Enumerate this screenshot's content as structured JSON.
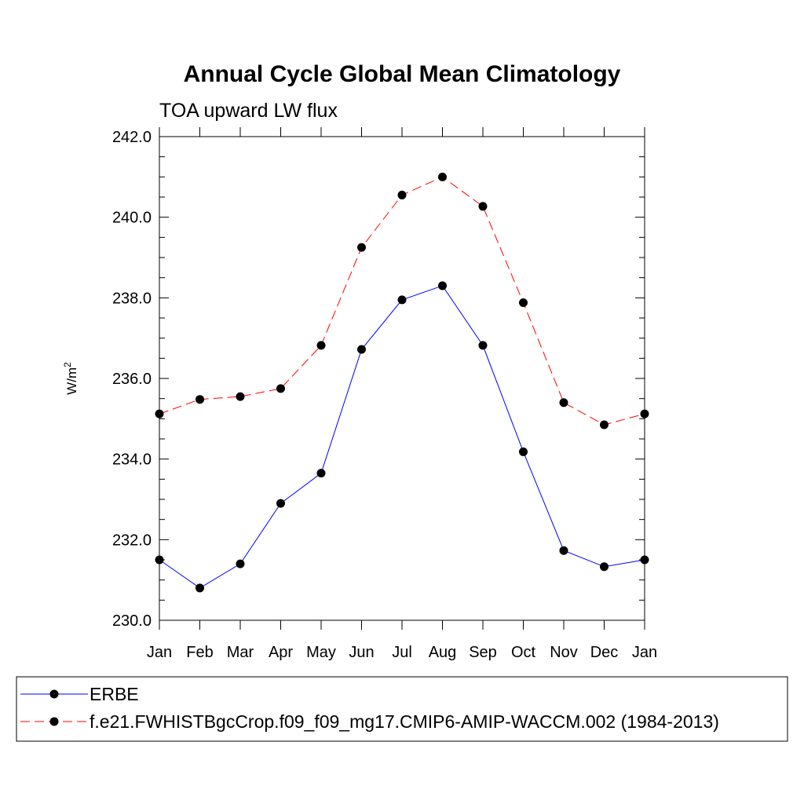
{
  "chart_data": {
    "type": "line",
    "title": "Annual Cycle Global Mean Climatology",
    "subtitle": "TOA upward LW flux",
    "ylabel_base": "W/m",
    "ylabel_sup": "2",
    "xlabel": "",
    "categories": [
      "Jan",
      "Feb",
      "Mar",
      "Apr",
      "May",
      "Jun",
      "Jul",
      "Aug",
      "Sep",
      "Oct",
      "Nov",
      "Dec",
      "Jan"
    ],
    "ylim": [
      230.0,
      242.0
    ],
    "yticks": [
      "230.0",
      "232.0",
      "234.0",
      "236.0",
      "238.0",
      "240.0",
      "242.0"
    ],
    "grid": false,
    "legend_position": "bottom",
    "series": [
      {
        "name": "ERBE",
        "color": "#0000ff",
        "dash": "solid",
        "values": [
          231.5,
          230.8,
          231.4,
          232.9,
          233.65,
          236.72,
          237.95,
          238.3,
          236.82,
          234.18,
          231.73,
          231.33,
          231.5
        ]
      },
      {
        "name": "f.e21.FWHISTBgcCrop.f09_f09_mg17.CMIP6-AMIP-WACCM.002 (1984-2013)",
        "color": "#ff0000",
        "dash": "dashed",
        "values": [
          235.12,
          235.48,
          235.55,
          235.75,
          236.82,
          239.25,
          240.55,
          241.0,
          240.27,
          237.88,
          235.4,
          234.85,
          235.12
        ]
      }
    ]
  }
}
